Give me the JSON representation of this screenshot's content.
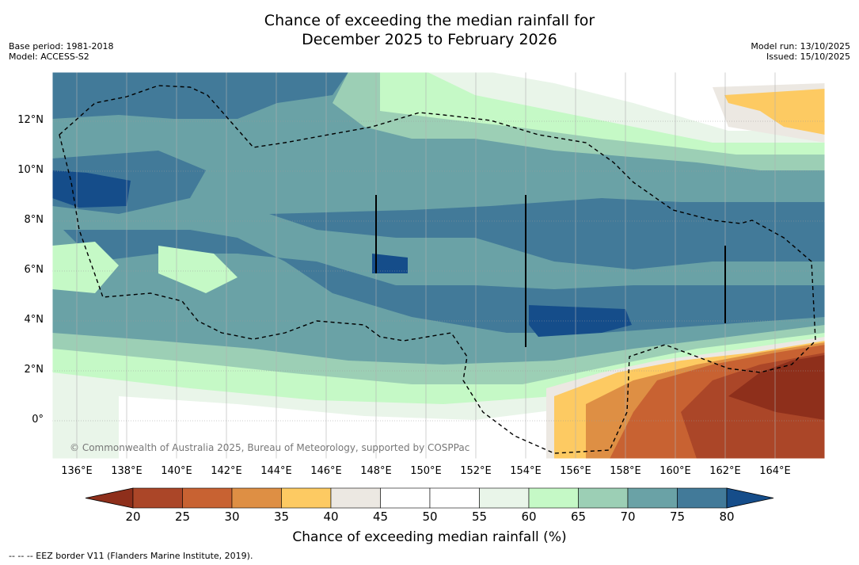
{
  "title": {
    "line1": "Chance of exceeding the median rainfall for",
    "line2": "December 2025 to February 2026"
  },
  "meta_left": {
    "base_period": "Base period: 1981-2018",
    "model": "Model: ACCESS-S2"
  },
  "meta_right": {
    "model_run": "Model run: 13/10/2025",
    "issued": "Issued: 15/10/2025"
  },
  "lat_labels": [
    "12°N",
    "10°N",
    "8°N",
    "6°N",
    "4°N",
    "2°N",
    "0°"
  ],
  "lon_labels": [
    "136°E",
    "138°E",
    "140°E",
    "142°E",
    "144°E",
    "146°E",
    "148°E",
    "150°E",
    "152°E",
    "154°E",
    "156°E",
    "158°E",
    "160°E",
    "162°E",
    "164°E"
  ],
  "colorbar": {
    "ticks": [
      "20",
      "25",
      "30",
      "35",
      "40",
      "45",
      "50",
      "55",
      "60",
      "65",
      "70",
      "75",
      "80"
    ],
    "colors": [
      "#8e2f1b",
      "#ab4628",
      "#c86232",
      "#de8f44",
      "#fdca62",
      "#ece8e2",
      "#ffffff",
      "#ffffff",
      "#e9f5e9",
      "#c5f9c6",
      "#9ccfb5",
      "#6aa2a6",
      "#427a99",
      "#154d8a"
    ],
    "title": "Chance of exceeding median rainfall (%)"
  },
  "copyright": "© Commonwealth of Australia 2025, Bureau of Meteorology, supported by COSPPac",
  "footnote": "--  --  -- EEZ border V11 (Flanders Marine Institute, 2019)."
}
